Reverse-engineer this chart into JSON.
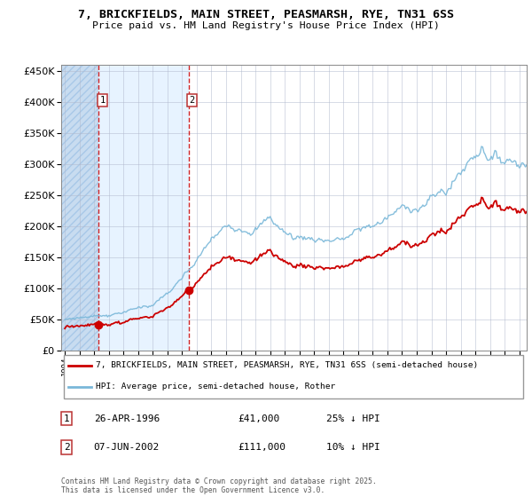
{
  "title": "7, BRICKFIELDS, MAIN STREET, PEASMARSH, RYE, TN31 6SS",
  "subtitle": "Price paid vs. HM Land Registry's House Price Index (HPI)",
  "legend_red": "7, BRICKFIELDS, MAIN STREET, PEASMARSH, RYE, TN31 6SS (semi-detached house)",
  "legend_blue": "HPI: Average price, semi-detached house, Rother",
  "annotation1_date": "26-APR-1996",
  "annotation1_price": "£41,000",
  "annotation1_hpi": "25% ↓ HPI",
  "annotation2_date": "07-JUN-2002",
  "annotation2_price": "£111,000",
  "annotation2_hpi": "10% ↓ HPI",
  "footnote": "Contains HM Land Registry data © Crown copyright and database right 2025.\nThis data is licensed under the Open Government Licence v3.0.",
  "purchase1_year": 1996.32,
  "purchase1_price": 41000,
  "purchase2_year": 2002.44,
  "purchase2_price": 111000,
  "hpi_color": "#7ab8d9",
  "red_color": "#cc0000",
  "shade_color": "#ddeeff",
  "hatch_color": "#c8dcf0",
  "grid_color": "#b0b8cc",
  "ylim": [
    0,
    460000
  ],
  "xlim_start": 1993.75,
  "xlim_end": 2025.5
}
